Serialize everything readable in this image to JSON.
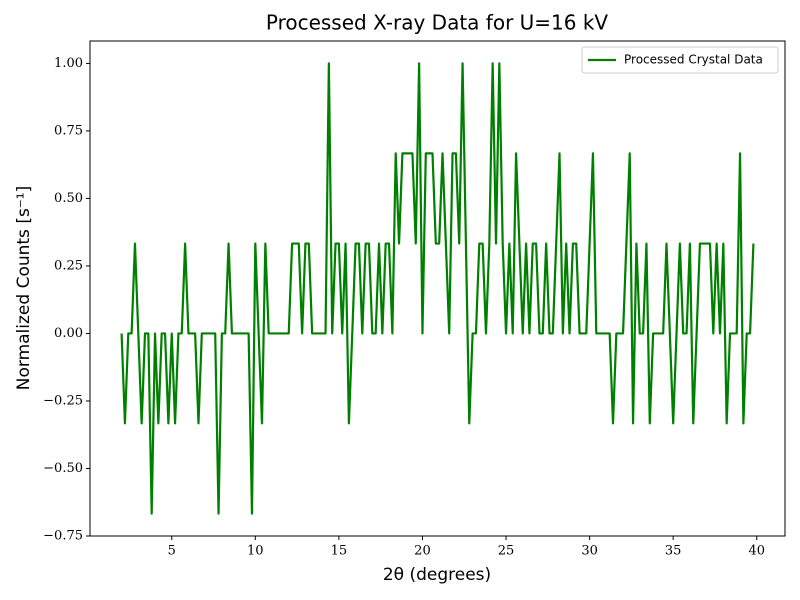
{
  "chart_data": {
    "type": "line",
    "title": "Processed X-ray Data for U=16 kV",
    "x_label": "2θ (degrees)",
    "y_label": "Normalized Counts [s⁻¹]",
    "x": [
      2,
      2.2,
      2.4,
      2.6,
      2.8,
      3,
      3.2,
      3.4,
      3.6,
      3.8,
      4,
      4.2,
      4.4,
      4.6,
      4.8,
      5,
      5.2,
      5.4,
      5.6,
      5.8,
      6,
      6.2,
      6.4,
      6.6,
      6.8,
      7,
      7.2,
      7.4,
      7.6,
      7.8,
      8,
      8.2,
      8.4,
      8.6,
      8.8,
      9,
      9.2,
      9.4,
      9.6,
      9.8,
      10,
      10.2,
      10.4,
      10.6,
      10.8,
      11,
      11.2,
      11.4,
      11.6,
      11.8,
      12,
      12.2,
      12.4,
      12.6,
      12.8,
      13,
      13.2,
      13.4,
      13.6,
      13.8,
      14,
      14.2,
      14.4,
      14.6,
      14.8,
      15,
      15.2,
      15.4,
      15.6,
      15.8,
      16,
      16.2,
      16.4,
      16.6,
      16.8,
      17,
      17.2,
      17.4,
      17.6,
      17.8,
      18,
      18.2,
      18.4,
      18.6,
      18.8,
      19,
      19.2,
      19.4,
      19.6,
      19.8,
      20,
      20.2,
      20.4,
      20.6,
      20.8,
      21,
      21.2,
      21.4,
      21.6,
      21.8,
      22,
      22.2,
      22.4,
      22.6,
      22.8,
      23,
      23.2,
      23.4,
      23.6,
      23.8,
      24,
      24.2,
      24.4,
      24.6,
      24.8,
      25,
      25.2,
      25.4,
      25.6,
      25.8,
      26,
      26.2,
      26.4,
      26.6,
      26.8,
      27,
      27.2,
      27.4,
      27.6,
      27.8,
      28,
      28.2,
      28.4,
      28.6,
      28.8,
      29,
      29.2,
      29.4,
      29.6,
      29.8,
      30,
      30.2,
      30.4,
      30.6,
      30.8,
      31,
      31.2,
      31.4,
      31.6,
      31.8,
      32,
      32.2,
      32.4,
      32.6,
      32.8,
      33,
      33.2,
      33.4,
      33.6,
      33.8,
      34,
      34.2,
      34.4,
      34.6,
      34.8,
      35,
      35.2,
      35.4,
      35.6,
      35.8,
      36,
      36.2,
      36.4,
      36.6,
      36.8,
      37,
      37.2,
      37.4,
      37.6,
      37.8,
      38,
      38.2,
      38.4,
      38.6,
      38.8,
      39,
      39.2,
      39.4,
      39.6,
      39.8
    ],
    "series": [
      {
        "name": "Processed Crystal Data",
        "color": "#008000",
        "values": [
          0,
          -0.333,
          0,
          0,
          0.333,
          0,
          -0.333,
          0,
          0,
          -0.667,
          0,
          -0.333,
          0,
          0,
          -0.333,
          0,
          -0.333,
          0,
          0,
          0.333,
          0,
          0,
          0,
          -0.333,
          0,
          0,
          0,
          0,
          0,
          -0.667,
          0,
          0,
          0.333,
          0,
          0,
          0,
          0,
          0,
          0,
          -0.667,
          0.333,
          0,
          -0.333,
          0.333,
          0,
          0,
          0,
          0,
          0,
          0,
          0,
          0.333,
          0.333,
          0.333,
          0,
          0.333,
          0.333,
          0,
          0,
          0,
          0,
          0,
          1,
          0,
          0.333,
          0.333,
          0,
          0.333,
          -0.333,
          0,
          0.333,
          0.333,
          0,
          0.333,
          0.333,
          0,
          0,
          0.333,
          0,
          0.333,
          0.333,
          0,
          0.667,
          0.333,
          0.667,
          0.667,
          0.667,
          0.667,
          0.333,
          1,
          0,
          0.667,
          0.667,
          0.667,
          0.333,
          0.333,
          0.667,
          0.333,
          0,
          0.667,
          0.667,
          0.333,
          1,
          0.333,
          -0.333,
          0,
          0,
          0.333,
          0.333,
          0,
          0.333,
          1,
          0.333,
          1,
          0.333,
          0,
          0.333,
          0,
          0.667,
          0.333,
          0,
          0.333,
          0,
          0.333,
          0.333,
          0,
          0,
          0.333,
          0,
          0,
          0.333,
          0.667,
          0,
          0.333,
          0,
          0.333,
          0.333,
          0,
          0,
          0,
          0.333,
          0.667,
          0,
          0,
          0,
          0,
          0,
          -0.333,
          0,
          0,
          0,
          0.333,
          0.667,
          -0.333,
          0.333,
          0,
          0,
          0.333,
          -0.333,
          0,
          0,
          0,
          0,
          0.333,
          0,
          -0.333,
          0,
          0.333,
          0,
          0,
          0.333,
          -0.333,
          0,
          0.333,
          0.333,
          0.333,
          0.333,
          0,
          0.333,
          0,
          0.333,
          -0.333,
          0,
          0,
          0,
          0.667,
          -0.333,
          0,
          0,
          0.333
        ]
      }
    ],
    "xlim": [
      0.11,
      41.69
    ],
    "xticks": [
      5,
      10,
      15,
      20,
      25,
      30,
      35,
      40
    ],
    "ylim": [
      -0.75,
      1.083
    ],
    "yticks": [
      {
        "value": -0.75,
        "label": "−0.75"
      },
      {
        "value": -0.5,
        "label": "−0.50"
      },
      {
        "value": -0.25,
        "label": "−0.25"
      },
      {
        "value": 0,
        "label": "0.00"
      },
      {
        "value": 0.25,
        "label": "0.25"
      },
      {
        "value": 0.5,
        "label": "0.50"
      },
      {
        "value": 0.75,
        "label": "0.75"
      },
      {
        "value": 1,
        "label": "1.00"
      }
    ],
    "legend": "upper right"
  }
}
